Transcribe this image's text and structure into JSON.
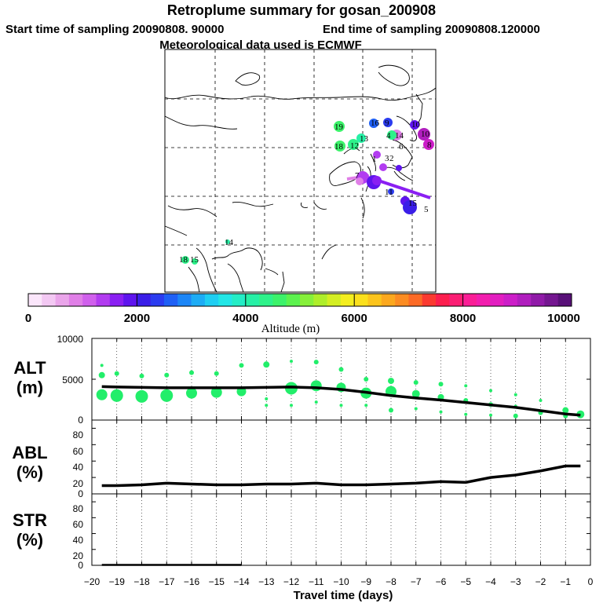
{
  "title": {
    "line1": "Retroplume summary for gosan_200908",
    "start": "Start time of sampling 20090808. 90000",
    "end": "End time of sampling 20090808.120000",
    "met": "Meteorological data used is ECMWF"
  },
  "colorbar": {
    "label": "Altitude (m)",
    "ticks": [
      "0",
      "2000",
      "4000",
      "6000",
      "8000",
      "10000"
    ],
    "colors": [
      "#fbe6fb",
      "#f3c8f3",
      "#eaa5ea",
      "#e07fe7",
      "#d060ec",
      "#b23cf0",
      "#8a1ff2",
      "#5e14ee",
      "#3a1ee8",
      "#2b3cf0",
      "#1f60f5",
      "#1c86f7",
      "#1dacf5",
      "#1fcef2",
      "#22e6e6",
      "#24edc6",
      "#27f0a6",
      "#2ef28a",
      "#3cf26a",
      "#5cf24e",
      "#86f03a",
      "#aeee2a",
      "#d4ee22",
      "#f4ee1e",
      "#fbe01c",
      "#fcc41c",
      "#fca81e",
      "#fc8c22",
      "#fc6a26",
      "#fb3a30",
      "#fc1e4e",
      "#fb1e74",
      "#fa1e96",
      "#f21eae",
      "#e21ec0",
      "#cc1ec8",
      "#b01ebe",
      "#901aa8",
      "#741690",
      "#581078"
    ]
  },
  "map": {
    "date_labels": [
      "19",
      "18",
      "12",
      "13",
      "16",
      "9",
      "10",
      "4",
      "14",
      "10",
      "8",
      "6",
      "3",
      "2",
      "1",
      "7",
      "5",
      "11",
      "15",
      "14",
      "18",
      "15"
    ]
  },
  "chart_data": [
    {
      "type": "line",
      "panel": "ALT",
      "ylabel_line1": "ALT",
      "ylabel_line2": "(m)",
      "ylim": [
        0,
        10000
      ],
      "yticks": [
        "10000",
        "5000",
        "0"
      ],
      "line": {
        "x": [
          -19.6,
          -19,
          -18,
          -17,
          -16,
          -15,
          -14,
          -13,
          -12,
          -11,
          -10,
          -9,
          -8,
          -7,
          -6,
          -5,
          -4,
          -3,
          -2,
          -1,
          -0.4
        ],
        "y": [
          4100,
          4050,
          4000,
          3950,
          3950,
          3950,
          3950,
          4000,
          4050,
          3950,
          3750,
          3400,
          3000,
          2700,
          2450,
          2150,
          1850,
          1550,
          1150,
          750,
          600
        ]
      },
      "scatter": {
        "color": "#22ee6a",
        "points": [
          {
            "x": -19.6,
            "y": 3100,
            "s": 7
          },
          {
            "x": -19.6,
            "y": 5500,
            "s": 4
          },
          {
            "x": -19.6,
            "y": 6700,
            "s": 2
          },
          {
            "x": -19,
            "y": 3000,
            "s": 8
          },
          {
            "x": -19,
            "y": 5700,
            "s": 3
          },
          {
            "x": -18,
            "y": 2900,
            "s": 8
          },
          {
            "x": -18,
            "y": 5400,
            "s": 3
          },
          {
            "x": -17,
            "y": 3000,
            "s": 8
          },
          {
            "x": -17,
            "y": 5500,
            "s": 3
          },
          {
            "x": -16,
            "y": 3300,
            "s": 7
          },
          {
            "x": -16,
            "y": 5800,
            "s": 3
          },
          {
            "x": -15,
            "y": 3400,
            "s": 7
          },
          {
            "x": -15,
            "y": 5700,
            "s": 3
          },
          {
            "x": -14,
            "y": 3500,
            "s": 6
          },
          {
            "x": -14,
            "y": 6700,
            "s": 3
          },
          {
            "x": -13,
            "y": 2600,
            "s": 2
          },
          {
            "x": -13,
            "y": 1800,
            "s": 2
          },
          {
            "x": -13,
            "y": 6800,
            "s": 4
          },
          {
            "x": -12,
            "y": 3900,
            "s": 8
          },
          {
            "x": -12,
            "y": 1800,
            "s": 2
          },
          {
            "x": -12,
            "y": 7200,
            "s": 2
          },
          {
            "x": -11,
            "y": 4200,
            "s": 7
          },
          {
            "x": -11,
            "y": 2200,
            "s": 2
          },
          {
            "x": -11,
            "y": 7100,
            "s": 3
          },
          {
            "x": -10,
            "y": 4000,
            "s": 6
          },
          {
            "x": -10,
            "y": 1800,
            "s": 2
          },
          {
            "x": -10,
            "y": 6200,
            "s": 3
          },
          {
            "x": -9,
            "y": 3300,
            "s": 7
          },
          {
            "x": -9,
            "y": 1800,
            "s": 2
          },
          {
            "x": -9,
            "y": 5000,
            "s": 3
          },
          {
            "x": -8,
            "y": 3500,
            "s": 7
          },
          {
            "x": -8,
            "y": 1200,
            "s": 3
          },
          {
            "x": -8,
            "y": 4800,
            "s": 4
          },
          {
            "x": -7,
            "y": 3200,
            "s": 5
          },
          {
            "x": -7,
            "y": 1400,
            "s": 2
          },
          {
            "x": -7,
            "y": 4600,
            "s": 3
          },
          {
            "x": -6,
            "y": 2800,
            "s": 4
          },
          {
            "x": -6,
            "y": 1000,
            "s": 2
          },
          {
            "x": -6,
            "y": 4400,
            "s": 3
          },
          {
            "x": -5,
            "y": 2400,
            "s": 3
          },
          {
            "x": -5,
            "y": 700,
            "s": 2
          },
          {
            "x": -5,
            "y": 4200,
            "s": 2
          },
          {
            "x": -4,
            "y": 1900,
            "s": 3
          },
          {
            "x": -4,
            "y": 600,
            "s": 2
          },
          {
            "x": -4,
            "y": 3600,
            "s": 2
          },
          {
            "x": -3,
            "y": 1700,
            "s": 2
          },
          {
            "x": -3,
            "y": 500,
            "s": 3
          },
          {
            "x": -3,
            "y": 3100,
            "s": 2
          },
          {
            "x": -2,
            "y": 900,
            "s": 3
          },
          {
            "x": -2,
            "y": 2400,
            "s": 2
          },
          {
            "x": -1,
            "y": 1200,
            "s": 4
          },
          {
            "x": -1,
            "y": 500,
            "s": 3
          },
          {
            "x": -0.4,
            "y": 700,
            "s": 5
          }
        ]
      }
    },
    {
      "type": "line",
      "panel": "ABL",
      "ylabel_line1": "ABL",
      "ylabel_line2": "(%)",
      "ylim": [
        0,
        90
      ],
      "yticks": [
        "80",
        "60",
        "40",
        "20",
        "0"
      ],
      "x": [
        -19.6,
        -19,
        -18,
        -17,
        -16,
        -15,
        -14,
        -13,
        -12,
        -11,
        -10,
        -9,
        -8,
        -7,
        -6,
        -5,
        -4,
        -3,
        -2,
        -1,
        -0.4
      ],
      "y": [
        10,
        10,
        11,
        13,
        12,
        11,
        11,
        12,
        12,
        13,
        11,
        11,
        12,
        13,
        15,
        14,
        20,
        23,
        28,
        34,
        34
      ]
    },
    {
      "type": "line",
      "panel": "STR",
      "ylabel_line1": "STR",
      "ylabel_line2": "(%)",
      "ylim": [
        0,
        90
      ],
      "yticks": [
        "80",
        "60",
        "40",
        "20",
        "0"
      ],
      "x": [
        -19.6,
        -14
      ],
      "y": [
        0.5,
        0.5
      ]
    }
  ],
  "xaxis": {
    "label": "Travel time (days)",
    "ticks": [
      "−20",
      "−19",
      "−18",
      "−17",
      "−16",
      "−15",
      "−14",
      "−13",
      "−12",
      "−11",
      "−10",
      "−9",
      "−8",
      "−7",
      "−6",
      "−5",
      "−4",
      "−3",
      "−2",
      "−1",
      "0"
    ]
  }
}
